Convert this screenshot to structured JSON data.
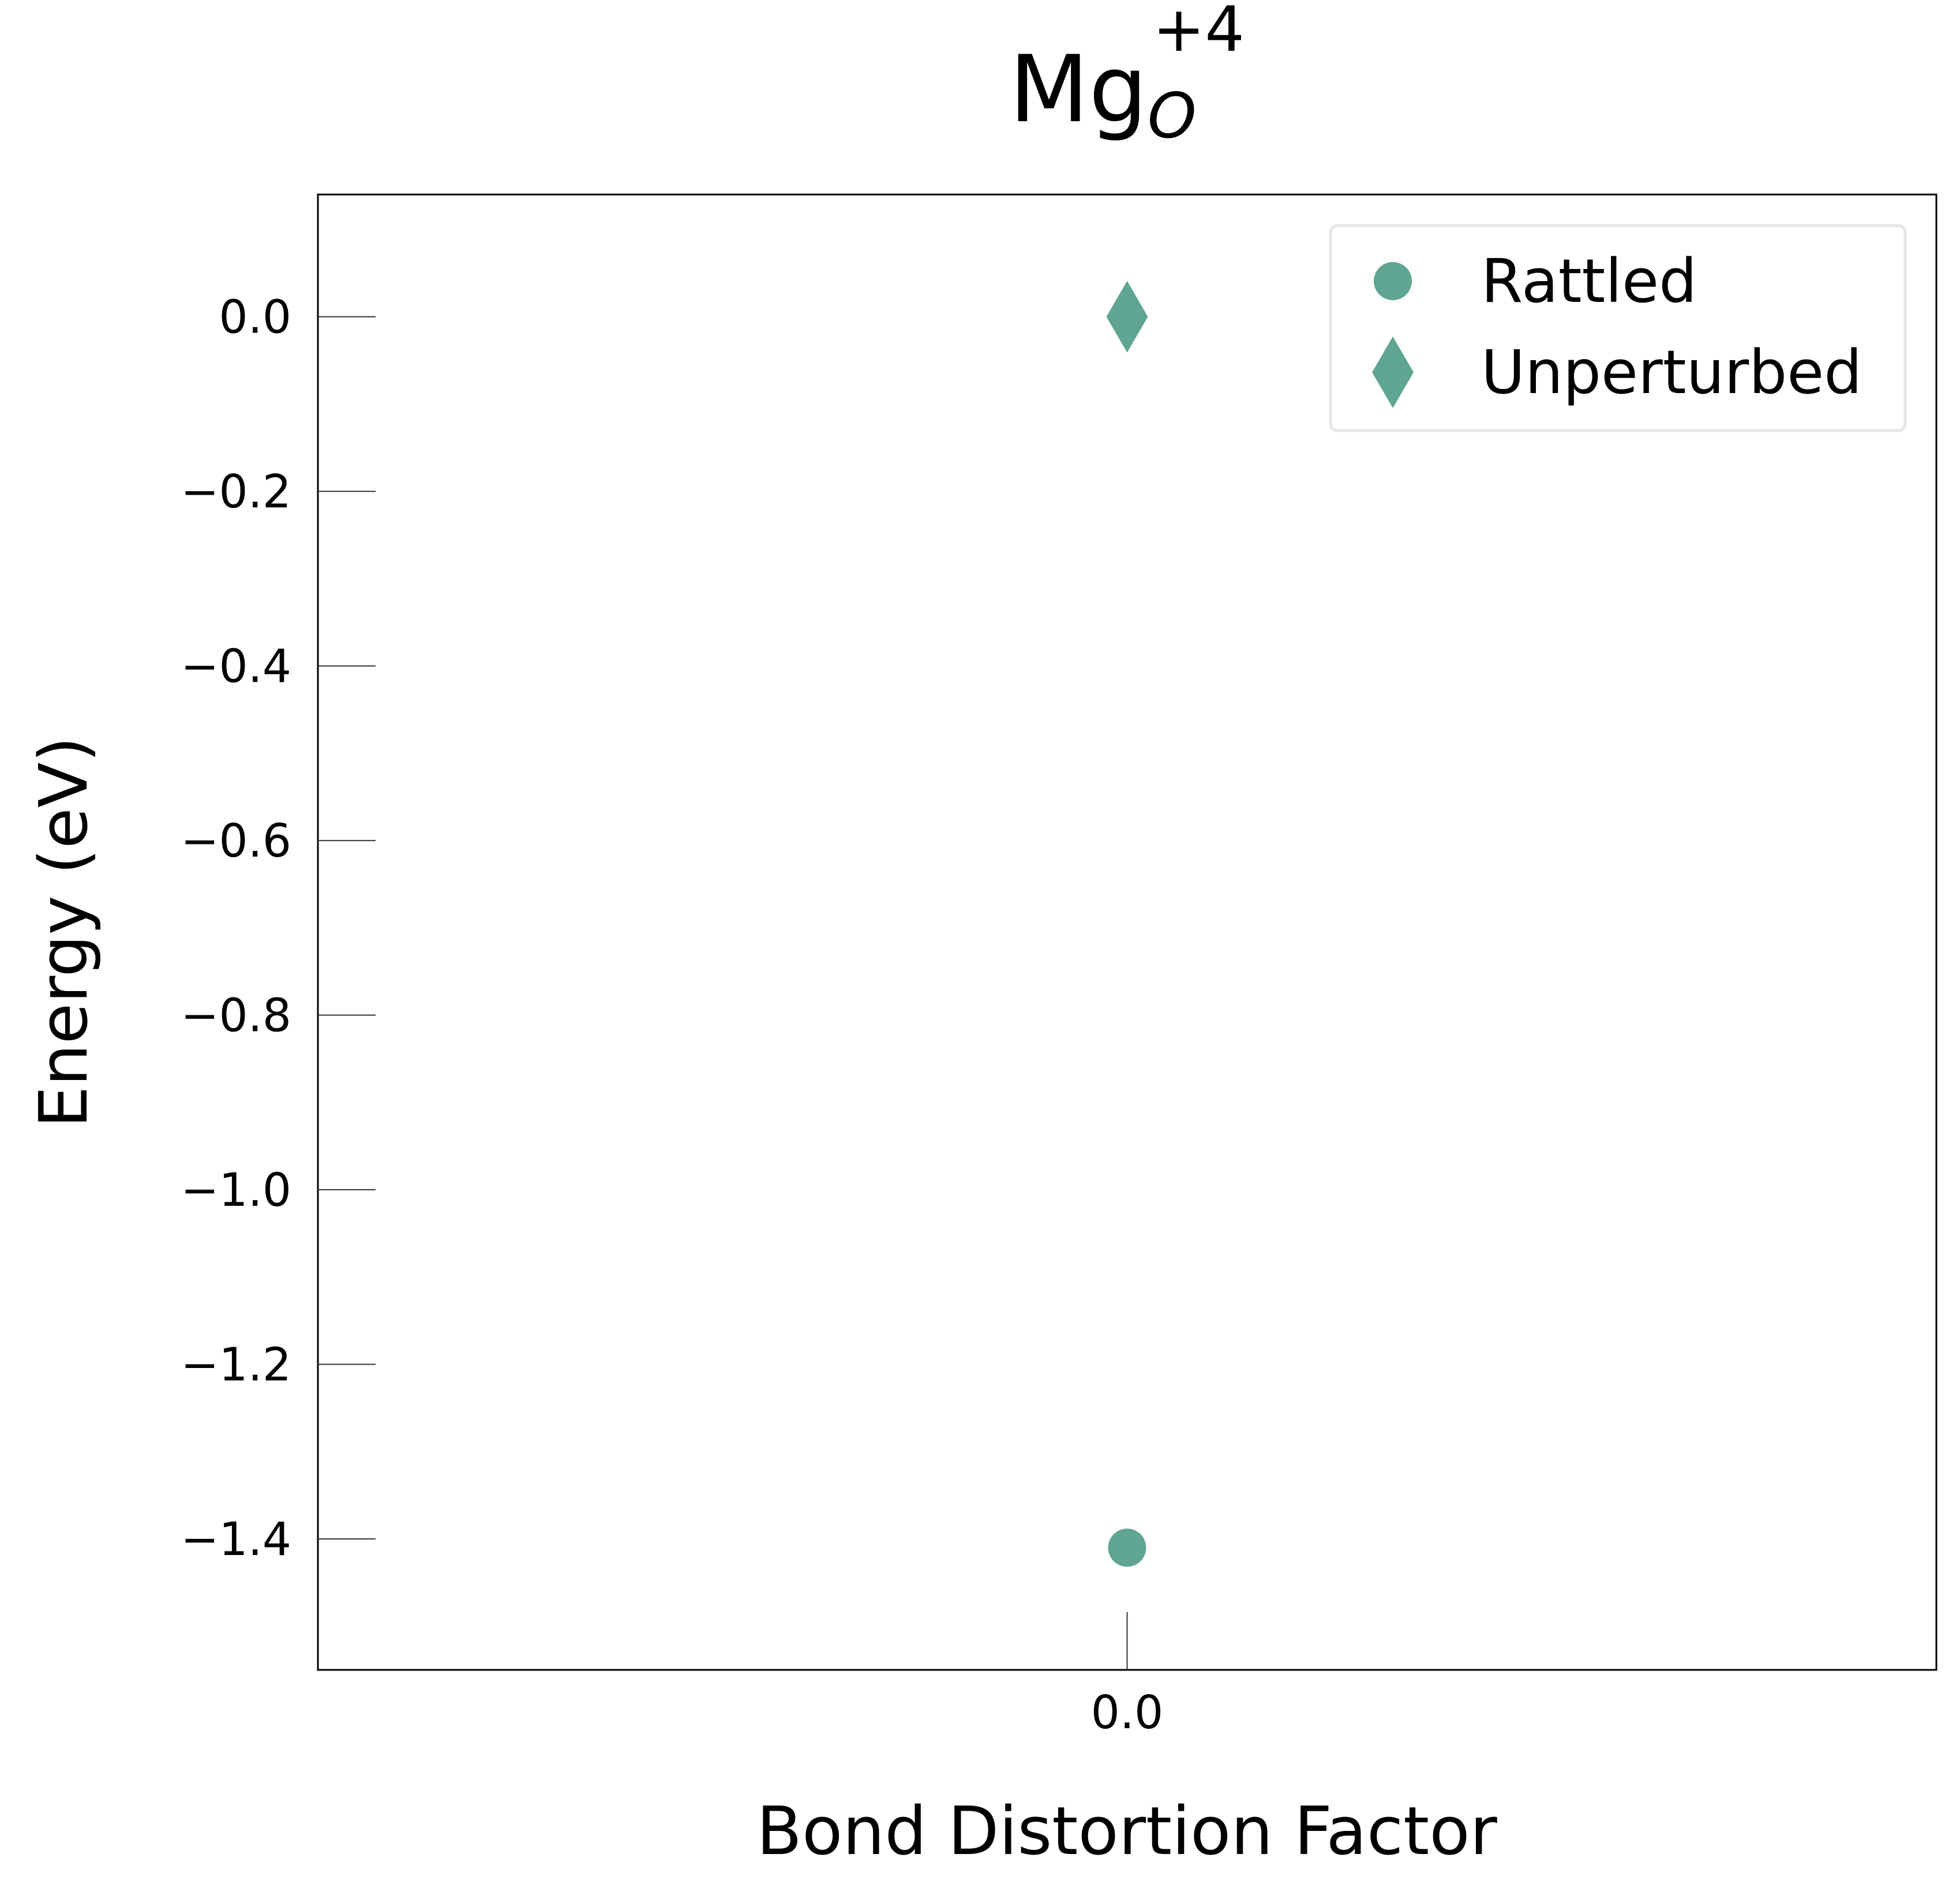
{
  "chart_data": {
    "type": "scatter",
    "title": {
      "base": "Mg",
      "superscript": "+4",
      "subscript": "O"
    },
    "xlabel": "Bond Distortion Factor",
    "ylabel": "Energy (eV)",
    "x_ticks": [
      0.0
    ],
    "x_tick_labels": [
      "0.0"
    ],
    "y_ticks": [
      0.0,
      -0.2,
      -0.4,
      -0.6,
      -0.8,
      -1.0,
      -1.2,
      -1.4
    ],
    "y_tick_labels": [
      "0.0",
      "−0.2",
      "−0.4",
      "−0.6",
      "−0.8",
      "−1.0",
      "−1.2",
      "−1.4"
    ],
    "xlim": [
      -0.5,
      0.5
    ],
    "ylim": [
      -1.55,
      0.14
    ],
    "grid": false,
    "legend_position": "top-right",
    "series": [
      {
        "name": "Rattled",
        "marker": "circle",
        "color": "#5fa592",
        "points": [
          {
            "x": 0.0,
            "y": -1.41
          }
        ]
      },
      {
        "name": "Unperturbed",
        "marker": "diamond",
        "color": "#5fa592",
        "points": [
          {
            "x": 0.0,
            "y": 0.0
          }
        ]
      }
    ]
  }
}
